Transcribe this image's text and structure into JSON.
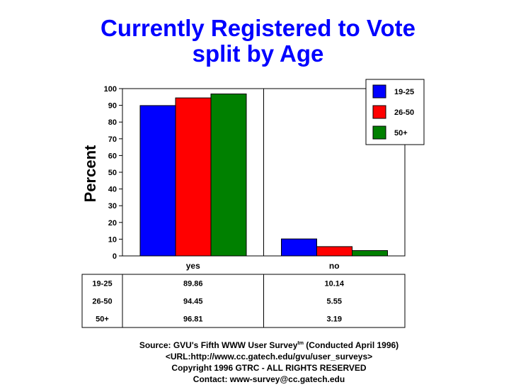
{
  "chart_data": {
    "type": "bar",
    "title": [
      "Currently Registered to Vote",
      "split by Age"
    ],
    "ylabel": "Percent",
    "xlabel": "",
    "categories": [
      "yes",
      "no"
    ],
    "series": [
      {
        "name": "19-25",
        "color": "#0000ff",
        "values": [
          89.86,
          10.14
        ],
        "labels": [
          "89.86",
          "10.14"
        ]
      },
      {
        "name": "26-50",
        "color": "#ff0000",
        "values": [
          94.45,
          5.55
        ],
        "labels": [
          "94.45",
          "5.55"
        ]
      },
      {
        "name": "50+",
        "color": "#008000",
        "values": [
          96.81,
          3.19
        ],
        "labels": [
          "96.81",
          "3.19"
        ]
      }
    ],
    "ylim": [
      0,
      100
    ],
    "yticks": [
      "0",
      "10",
      "20",
      "30",
      "40",
      "50",
      "60",
      "70",
      "80",
      "90",
      "100"
    ],
    "grid": false,
    "legend_position": "top-right",
    "data_table": true
  },
  "footer": {
    "line1_before": "Source: GVU's Fifth WWW User Survey",
    "line1_sup": "tm",
    "line1_after": "  (Conducted April 1996)",
    "line2": "<URL:http://www.cc.gatech.edu/gvu/user_surveys>",
    "line3": "Copyright 1996 GTRC -  ALL RIGHTS RESERVED",
    "line4": "Contact: www-survey@cc.gatech.edu"
  }
}
